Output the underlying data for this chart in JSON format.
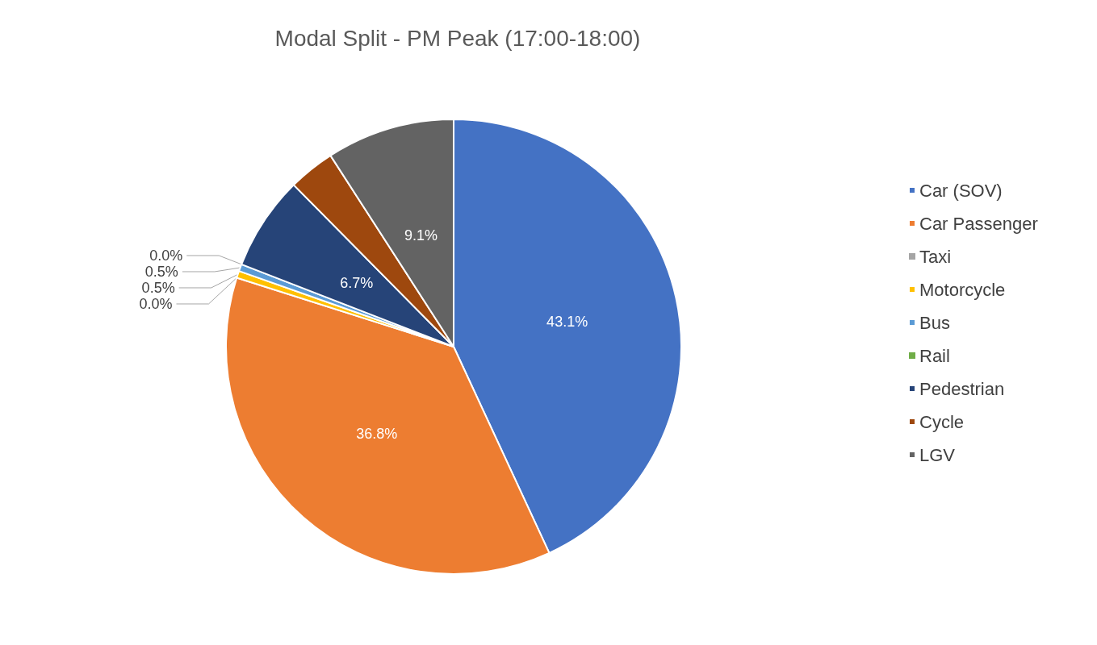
{
  "chart_data": {
    "type": "pie",
    "title": "Modal Split - PM Peak (17:00-18:00)",
    "categories": [
      "Car (SOV)",
      "Car Passenger",
      "Taxi",
      "Motorcycle",
      "Bus",
      "Rail",
      "Pedestrian",
      "Cycle",
      "LGV"
    ],
    "values": [
      43.1,
      36.8,
      0.0,
      0.5,
      0.5,
      0.0,
      6.7,
      3.3,
      9.1
    ],
    "value_labels": [
      "43.1%",
      "36.8%",
      "0.0%",
      "0.5%",
      "0.5%",
      "0.0%",
      "6.7%",
      null,
      "9.1%"
    ],
    "colors": [
      "#4472c4",
      "#ed7d31",
      "#a5a5a5",
      "#ffc000",
      "#5b9bd5",
      "#70ad47",
      "#264478",
      "#9e480e",
      "#636363"
    ],
    "legend": "right"
  }
}
